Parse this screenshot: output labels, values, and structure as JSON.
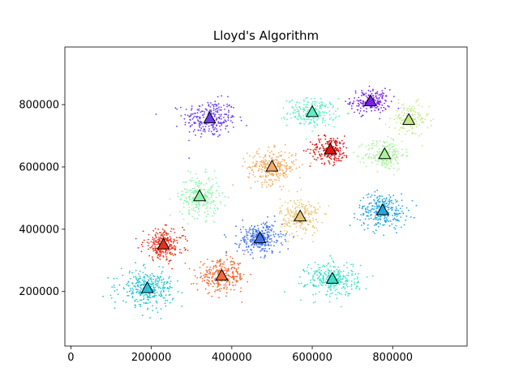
{
  "chart_data": {
    "type": "scatter",
    "title": "Lloyd's Algorithm",
    "xlabel": "",
    "ylabel": "",
    "xlim": [
      -15000,
      985000
    ],
    "ylim": [
      25000,
      985000
    ],
    "x_ticks": [
      0,
      200000,
      400000,
      600000,
      800000
    ],
    "x_tick_labels": [
      "0",
      "200000",
      "400000",
      "600000",
      "800000"
    ],
    "y_ticks": [
      200000,
      400000,
      600000,
      800000
    ],
    "y_tick_labels": [
      "200000",
      "400000",
      "600000",
      "800000"
    ],
    "grid": false,
    "legend": "none",
    "clusters": [
      {
        "color": "#6a3df0",
        "centroid": [
          345000,
          755000
        ],
        "spread": [
          60000,
          55000
        ],
        "count": 260
      },
      {
        "color": "#7a1fe8",
        "centroid": [
          745000,
          810000
        ],
        "spread": [
          45000,
          35000
        ],
        "count": 180
      },
      {
        "color": "#5cf0c4",
        "centroid": [
          600000,
          775000
        ],
        "spread": [
          55000,
          40000
        ],
        "count": 220
      },
      {
        "color": "#c3ea8a",
        "centroid": [
          840000,
          750000
        ],
        "spread": [
          45000,
          50000
        ],
        "count": 150
      },
      {
        "color": "#a8f49a",
        "centroid": [
          780000,
          640000
        ],
        "spread": [
          45000,
          45000
        ],
        "count": 200
      },
      {
        "color": "#e01414",
        "centroid": [
          645000,
          655000
        ],
        "spread": [
          45000,
          40000
        ],
        "count": 200
      },
      {
        "color": "#f6ac64",
        "centroid": [
          500000,
          600000
        ],
        "spread": [
          55000,
          50000
        ],
        "count": 280
      },
      {
        "color": "#8cf6a8",
        "centroid": [
          320000,
          505000
        ],
        "spread": [
          45000,
          60000
        ],
        "count": 250
      },
      {
        "color": "#e8c878",
        "centroid": [
          570000,
          440000
        ],
        "spread": [
          45000,
          55000
        ],
        "count": 220
      },
      {
        "color": "#24a4e0",
        "centroid": [
          775000,
          460000
        ],
        "spread": [
          55000,
          50000
        ],
        "count": 280
      },
      {
        "color": "#4070e8",
        "centroid": [
          470000,
          370000
        ],
        "spread": [
          50000,
          45000
        ],
        "count": 300
      },
      {
        "color": "#e8301c",
        "centroid": [
          230000,
          350000
        ],
        "spread": [
          45000,
          45000
        ],
        "count": 260
      },
      {
        "color": "#f46a34",
        "centroid": [
          375000,
          250000
        ],
        "spread": [
          55000,
          45000
        ],
        "count": 280
      },
      {
        "color": "#24c4d4",
        "centroid": [
          190000,
          210000
        ],
        "spread": [
          60000,
          50000
        ],
        "count": 320
      },
      {
        "color": "#3ce0c8",
        "centroid": [
          650000,
          240000
        ],
        "spread": [
          60000,
          50000
        ],
        "count": 300
      }
    ]
  }
}
